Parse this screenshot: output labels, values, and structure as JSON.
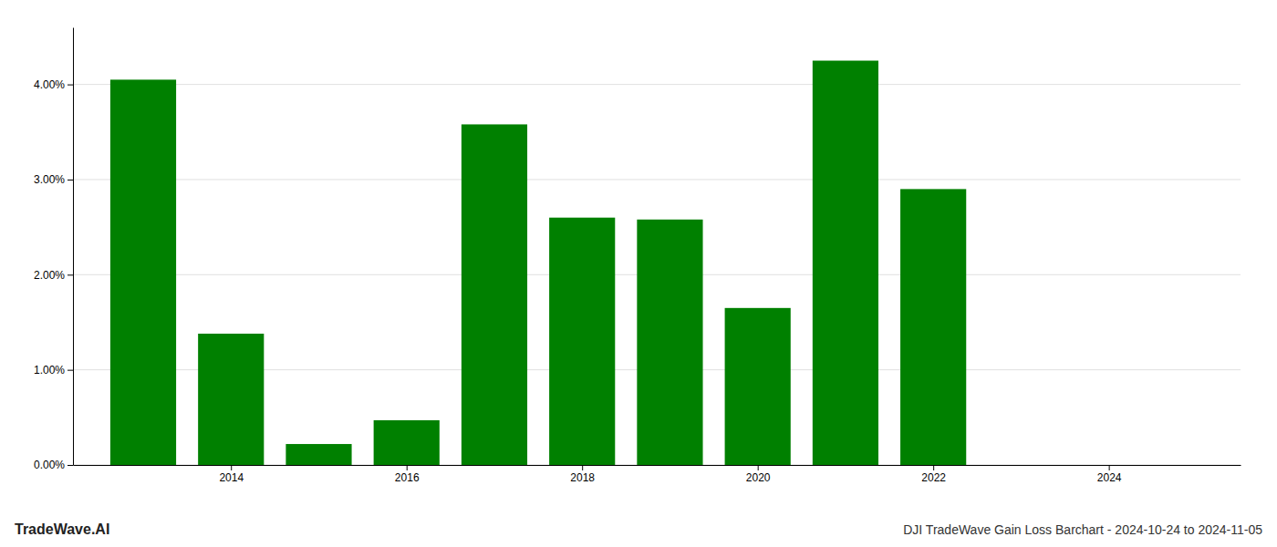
{
  "chart_data": {
    "type": "bar",
    "title": "DJI TradeWave Gain Loss Barchart - 2024-10-24 to 2024-11-05",
    "annotations": [
      "TradeWave.AI"
    ],
    "x": [
      2013,
      2014,
      2015,
      2016,
      2017,
      2018,
      2019,
      2020,
      2021,
      2022,
      2023
    ],
    "values": [
      4.05,
      1.38,
      0.22,
      0.47,
      3.58,
      2.6,
      2.58,
      1.65,
      4.25,
      2.9,
      0.0
    ],
    "color": "#008000",
    "xlim": [
      2012.2,
      2025.5
    ],
    "xticks": [
      2014,
      2016,
      2018,
      2020,
      2022,
      2024
    ],
    "ylim": [
      0,
      4.6
    ],
    "yticks": [
      {
        "value": 0.0,
        "label": "0.00%"
      },
      {
        "value": 1.0,
        "label": "1.00%"
      },
      {
        "value": 2.0,
        "label": "2.00%"
      },
      {
        "value": 3.0,
        "label": "3.00%"
      },
      {
        "value": 4.0,
        "label": "4.00%"
      }
    ],
    "grid": true
  }
}
